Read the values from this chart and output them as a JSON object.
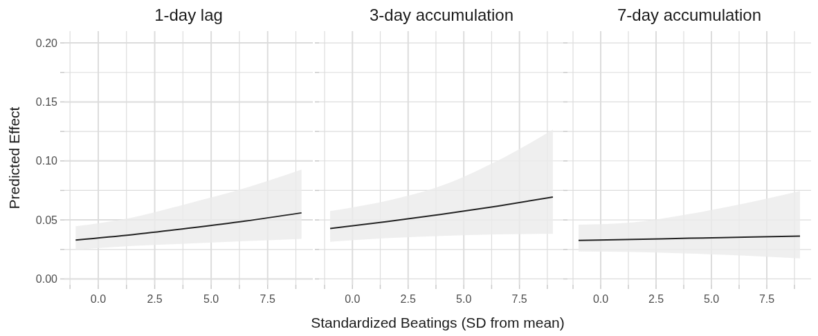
{
  "chart_data": [
    {
      "type": "line",
      "title": "1-day lag",
      "ylabel": "Predicted Effect",
      "x": [
        -1,
        1.5,
        4,
        6.5,
        9
      ],
      "series": [
        {
          "color": "#222222",
          "values": [
            0.033,
            0.0375,
            0.043,
            0.049,
            0.056
          ],
          "lower": [
            0.0248,
            0.028,
            0.03,
            0.032,
            0.034
          ],
          "upper": [
            0.0446,
            0.052,
            0.064,
            0.077,
            0.0927
          ]
        }
      ],
      "xlim": [
        -1.5,
        9.5
      ],
      "xticks": [
        {
          "value": -1.25,
          "label": null
        },
        {
          "value": 0,
          "label": "0.0"
        },
        {
          "value": 1.25,
          "label": null
        },
        {
          "value": 2.5,
          "label": "2.5"
        },
        {
          "value": 3.75,
          "label": null
        },
        {
          "value": 5,
          "label": "5.0"
        },
        {
          "value": 6.25,
          "label": null
        },
        {
          "value": 7.5,
          "label": "7.5"
        },
        {
          "value": 8.75,
          "label": null
        }
      ],
      "ylim": [
        -0.005,
        0.21
      ],
      "yticks": [
        {
          "value": 0,
          "label": "0.00"
        },
        {
          "value": 0.025,
          "label": null
        },
        {
          "value": 0.05,
          "label": "0.05"
        },
        {
          "value": 0.075,
          "label": null
        },
        {
          "value": 0.1,
          "label": "0.10"
        },
        {
          "value": 0.125,
          "label": null
        },
        {
          "value": 0.15,
          "label": "0.15"
        },
        {
          "value": 0.175,
          "label": null
        },
        {
          "value": 0.2,
          "label": "0.20"
        }
      ],
      "grid": true,
      "marker": "none",
      "line_style": "solid"
    },
    {
      "type": "line",
      "title": "3-day accumulation",
      "xlabel": "Standardized Beatings (SD from mean)",
      "x": [
        -1,
        1.5,
        4,
        6.5,
        9
      ],
      "series": [
        {
          "color": "#222222",
          "values": [
            0.0427,
            0.0485,
            0.0548,
            0.0617,
            0.0694
          ],
          "lower": [
            0.0315,
            0.0345,
            0.0365,
            0.0378,
            0.0382
          ],
          "upper": [
            0.0576,
            0.066,
            0.079,
            0.1,
            0.1265
          ]
        }
      ],
      "tick_labels": "x",
      "xlim": [
        -1.5,
        9.5
      ],
      "xticks": [
        {
          "value": -1.25,
          "label": null
        },
        {
          "value": 0,
          "label": "0.0"
        },
        {
          "value": 1.25,
          "label": null
        },
        {
          "value": 2.5,
          "label": "2.5"
        },
        {
          "value": 3.75,
          "label": null
        },
        {
          "value": 5,
          "label": "5.0"
        },
        {
          "value": 6.25,
          "label": null
        },
        {
          "value": 7.5,
          "label": "7.5"
        },
        {
          "value": 8.75,
          "label": null
        }
      ],
      "ylim": [
        -0.005,
        0.21
      ],
      "yticks": [
        {
          "value": 0,
          "label": null
        },
        {
          "value": 0.025,
          "label": null
        },
        {
          "value": 0.05,
          "label": null
        },
        {
          "value": 0.075,
          "label": null
        },
        {
          "value": 0.1,
          "label": null
        },
        {
          "value": 0.125,
          "label": null
        },
        {
          "value": 0.15,
          "label": null
        },
        {
          "value": 0.175,
          "label": null
        },
        {
          "value": 0.2,
          "label": null
        }
      ],
      "grid": true,
      "marker": "none",
      "line_style": "solid"
    },
    {
      "type": "line",
      "title": "7-day accumulation",
      "x": [
        -1,
        1.5,
        4,
        6.5,
        9
      ],
      "series": [
        {
          "color": "#222222",
          "values": [
            0.0326,
            0.0335,
            0.0345,
            0.0354,
            0.0363
          ],
          "lower": [
            0.0233,
            0.0228,
            0.0215,
            0.0198,
            0.0174
          ],
          "upper": [
            0.0459,
            0.048,
            0.055,
            0.064,
            0.0746
          ]
        }
      ],
      "tick_labels": "x",
      "xlim": [
        -1.5,
        9.5
      ],
      "xticks": [
        {
          "value": -1.25,
          "label": null
        },
        {
          "value": 0,
          "label": "0.0"
        },
        {
          "value": 1.25,
          "label": null
        },
        {
          "value": 2.5,
          "label": "2.5"
        },
        {
          "value": 3.75,
          "label": null
        },
        {
          "value": 5,
          "label": "5.0"
        },
        {
          "value": 6.25,
          "label": null
        },
        {
          "value": 7.5,
          "label": "7.5"
        },
        {
          "value": 8.75,
          "label": null
        }
      ],
      "ylim": [
        -0.005,
        0.21
      ],
      "yticks": [
        {
          "value": 0,
          "label": null
        },
        {
          "value": 0.025,
          "label": null
        },
        {
          "value": 0.05,
          "label": null
        },
        {
          "value": 0.075,
          "label": null
        },
        {
          "value": 0.1,
          "label": null
        },
        {
          "value": 0.125,
          "label": null
        },
        {
          "value": 0.15,
          "label": null
        },
        {
          "value": 0.175,
          "label": null
        },
        {
          "value": 0.2,
          "label": null
        }
      ],
      "grid": true,
      "marker": "none",
      "line_style": "solid"
    }
  ]
}
